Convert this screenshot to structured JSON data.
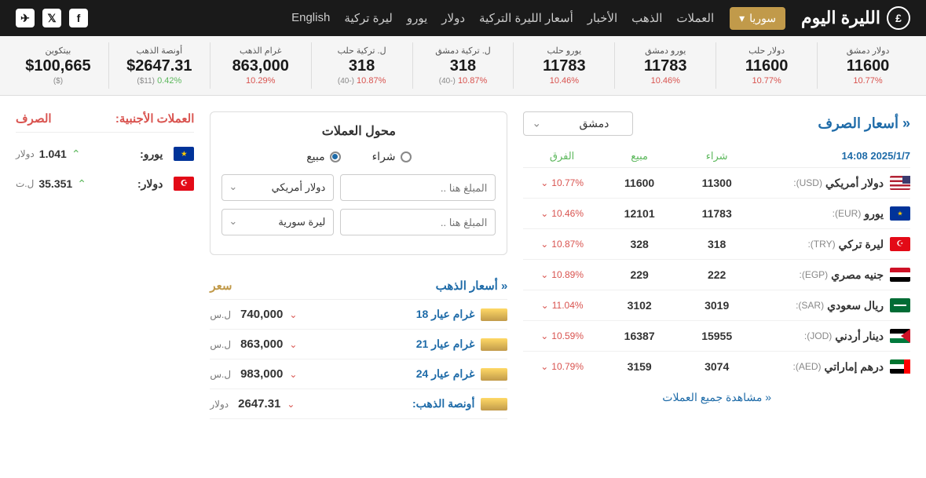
{
  "header": {
    "logo_text": "الليرة اليوم",
    "country": "سوريا",
    "nav": [
      "العملات",
      "الذهب",
      "الأخبار",
      "أسعار الليرة التركية",
      "دولار",
      "يورو",
      "ليرة تركية",
      "English"
    ]
  },
  "ticker": [
    {
      "label": "دولار دمشق",
      "value": "11600",
      "change": "10.77%",
      "dir": "down",
      "sub": ""
    },
    {
      "label": "دولار حلب",
      "value": "11600",
      "change": "10.77%",
      "dir": "down",
      "sub": ""
    },
    {
      "label": "يورو دمشق",
      "value": "11783",
      "change": "10.46%",
      "dir": "down",
      "sub": ""
    },
    {
      "label": "يورو حلب",
      "value": "11783",
      "change": "10.46%",
      "dir": "down",
      "sub": ""
    },
    {
      "label": "ل. تركية دمشق",
      "value": "318",
      "change": "10.87%",
      "dir": "down",
      "sub": "(-40)"
    },
    {
      "label": "ل. تركية حلب",
      "value": "318",
      "change": "10.87%",
      "dir": "down",
      "sub": "(-40)"
    },
    {
      "label": "غرام الذهب",
      "value": "863,000",
      "change": "10.29%",
      "dir": "down",
      "sub": ""
    },
    {
      "label": "أونصة الذهب",
      "value": "$2647.31",
      "change": "0.42%",
      "dir": "up",
      "sub": "($11)"
    },
    {
      "label": "بيتكوين",
      "value": "$100,665",
      "change": "",
      "dir": "",
      "sub": "($)"
    }
  ],
  "exchange": {
    "title": "« أسعار الصرف",
    "city": "دمشق",
    "date": "2025/1/7 14:08",
    "head_buy": "شراء",
    "head_sell": "مبيع",
    "head_diff": "الفرق",
    "rows": [
      {
        "flag": "flag-us",
        "name": "دولار أمريكي",
        "code": "(USD):",
        "buy": "11300",
        "sell": "11600",
        "diff": "10.77%"
      },
      {
        "flag": "flag-eu",
        "name": "يورو",
        "code": "(EUR):",
        "buy": "11783",
        "sell": "12101",
        "diff": "10.46%"
      },
      {
        "flag": "flag-tr",
        "name": "ليرة تركي",
        "code": "(TRY):",
        "buy": "318",
        "sell": "328",
        "diff": "10.87%"
      },
      {
        "flag": "flag-eg",
        "name": "جنيه مصري",
        "code": "(EGP):",
        "buy": "222",
        "sell": "229",
        "diff": "10.89%"
      },
      {
        "flag": "flag-sa",
        "name": "ريال سعودي",
        "code": "(SAR):",
        "buy": "3019",
        "sell": "3102",
        "diff": "11.04%"
      },
      {
        "flag": "flag-jo",
        "name": "دينار أردني",
        "code": "(JOD):",
        "buy": "15955",
        "sell": "16387",
        "diff": "10.59%"
      },
      {
        "flag": "flag-ae",
        "name": "درهم إماراتي",
        "code": "(AED):",
        "buy": "3074",
        "sell": "3159",
        "diff": "10.79%"
      }
    ],
    "view_all": "« مشاهدة جميع العملات"
  },
  "converter": {
    "title": "محول العملات",
    "opt_buy": "شراء",
    "opt_sell": "مبيع",
    "placeholder": "المبلغ هنا ..",
    "cur1": "دولار أمريكي",
    "cur2": "ليرة سورية"
  },
  "gold": {
    "title": "« أسعار الذهب",
    "price_h": "سعر",
    "rows": [
      {
        "name": "غرام عيار 18",
        "price": "740,000",
        "unit": "ل.س"
      },
      {
        "name": "غرام عيار 21",
        "price": "863,000",
        "unit": "ل.س"
      },
      {
        "name": "غرام عيار 24",
        "price": "983,000",
        "unit": "ل.س"
      },
      {
        "name": "أونصة الذهب:",
        "price": "2647.31",
        "unit": "دولار"
      }
    ]
  },
  "foreign": {
    "head1": "العملات الأجنبية:",
    "head2": "الصرف",
    "rows": [
      {
        "flag": "flag-eu",
        "name": "يورو:",
        "val": "1.041",
        "unit": "دولار"
      },
      {
        "flag": "flag-tr",
        "name": "دولار:",
        "val": "35.351",
        "unit": "ل.ت"
      }
    ]
  }
}
